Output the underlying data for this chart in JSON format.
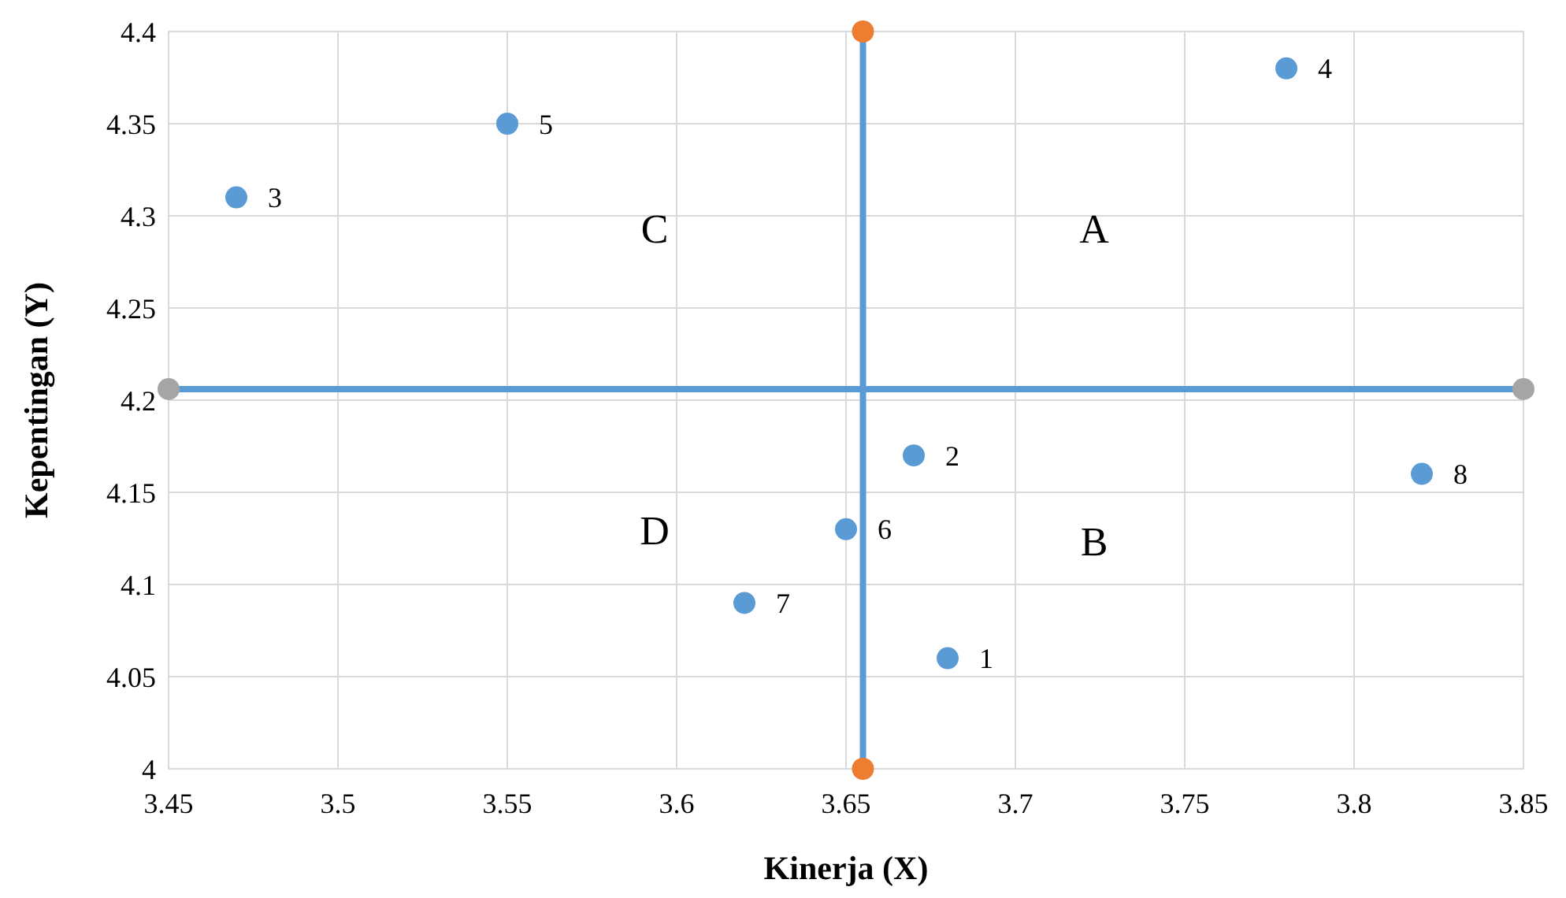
{
  "chart_data": {
    "type": "scatter",
    "xlabel": "Kinerja (X)",
    "ylabel": "Kepentingan (Y)",
    "xlim": [
      3.45,
      3.85
    ],
    "xticks": [
      3.45,
      3.5,
      3.55,
      3.6,
      3.65,
      3.7,
      3.75,
      3.8,
      3.85
    ],
    "ylim": [
      4,
      4.4
    ],
    "yticks": [
      4,
      4.05,
      4.1,
      4.15,
      4.2,
      4.25,
      4.3,
      4.35,
      4.4
    ],
    "grid": true,
    "marker": "circle",
    "series": [
      {
        "color": "#5b9bd5",
        "x": [
          3.68,
          3.67,
          3.47,
          3.78,
          3.55,
          3.65,
          3.62,
          3.82
        ],
        "values": [
          4.06,
          4.17,
          4.31,
          4.38,
          4.35,
          4.13,
          4.09,
          4.16
        ]
      },
      {
        "color": "#ed7d31",
        "x": [
          3.655,
          3.655
        ],
        "values": [
          4,
          4.4
        ]
      },
      {
        "color": "#a5a5a5",
        "x": [
          3.45,
          3.85
        ],
        "values": [
          4.206,
          4.206
        ]
      }
    ],
    "ref_lines": [
      {
        "axis": "x",
        "value": 3.655,
        "color": "#5b9bd5"
      },
      {
        "axis": "y",
        "value": 4.206,
        "color": "#5b9bd5"
      }
    ],
    "annotations": [
      "A",
      "B",
      "C",
      "D",
      {
        "text": "1",
        "x": 3.68,
        "y": 4.06
      },
      {
        "text": "2",
        "x": 3.67,
        "y": 4.17
      },
      {
        "text": "3",
        "x": 3.47,
        "y": 4.31
      },
      {
        "text": "4",
        "x": 3.78,
        "y": 4.38
      },
      {
        "text": "5",
        "x": 3.55,
        "y": 4.35
      },
      {
        "text": "6",
        "x": 3.65,
        "y": 4.13
      },
      {
        "text": "7",
        "x": 3.62,
        "y": 4.09
      },
      {
        "text": "8",
        "x": 3.82,
        "y": 4.16
      }
    ]
  }
}
